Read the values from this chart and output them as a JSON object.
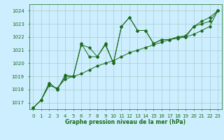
{
  "xlabel": "Graphe pression niveau de la mer (hPa)",
  "bg_color": "#cceeff",
  "grid_color": "#aacccc",
  "line_color": "#1a6b1a",
  "text_color": "#1a6b1a",
  "ylim": [
    1016.5,
    1024.5
  ],
  "xlim": [
    -0.5,
    23.5
  ],
  "yticks": [
    1017,
    1018,
    1019,
    1020,
    1021,
    1022,
    1023,
    1024
  ],
  "xticks": [
    0,
    1,
    2,
    3,
    4,
    5,
    6,
    7,
    8,
    9,
    10,
    11,
    12,
    13,
    14,
    15,
    16,
    17,
    18,
    19,
    20,
    21,
    22,
    23
  ],
  "series1": [
    1016.6,
    1017.2,
    1018.5,
    1018.0,
    1019.0,
    1019.0,
    1021.4,
    1021.2,
    1020.5,
    1021.4,
    1020.0,
    1022.8,
    1023.5,
    1022.5,
    1022.5,
    1021.5,
    1021.8,
    1021.8,
    1022.0,
    1022.0,
    1022.8,
    1023.0,
    1023.2,
    1024.0
  ],
  "series2": [
    1016.6,
    1017.2,
    1018.3,
    1018.1,
    1018.8,
    1019.0,
    1019.2,
    1019.5,
    1019.8,
    1020.0,
    1020.2,
    1020.5,
    1020.8,
    1021.0,
    1021.2,
    1021.4,
    1021.6,
    1021.8,
    1021.9,
    1022.0,
    1022.2,
    1022.5,
    1022.8,
    1024.0
  ],
  "series3": [
    1016.6,
    1017.2,
    1018.5,
    1018.0,
    1019.1,
    1019.0,
    1021.5,
    1020.5,
    1020.5,
    1021.5,
    1020.0,
    1022.8,
    1023.5,
    1022.5,
    1022.5,
    1021.5,
    1021.8,
    1021.8,
    1022.0,
    1022.1,
    1022.8,
    1023.2,
    1023.5,
    1024.0
  ],
  "figsize": [
    3.2,
    2.0
  ],
  "dpi": 100,
  "marker": "D",
  "markersize": 1.8,
  "linewidth": 0.7,
  "label_fontsize": 5.5,
  "tick_fontsize": 5.0
}
